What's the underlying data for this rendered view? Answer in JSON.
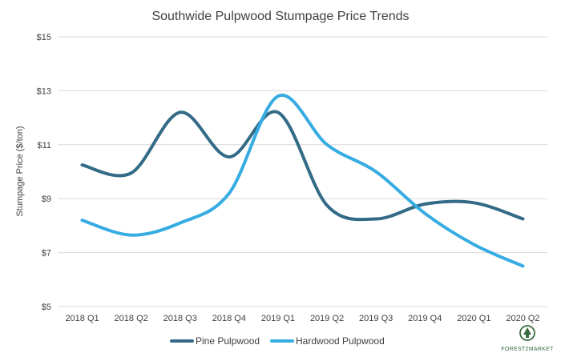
{
  "chart_data": {
    "type": "line",
    "title": "Southwide Pulpwood Stumpage Price Trends",
    "ylabel": "Stumpage Price ($/ton)",
    "xlabel": "",
    "categories": [
      "2018 Q1",
      "2018 Q2",
      "2018 Q3",
      "2018 Q4",
      "2019 Q1",
      "2019 Q2",
      "2019 Q3",
      "2019 Q4",
      "2020 Q1",
      "2020 Q2"
    ],
    "yticks": [
      "$5",
      "$7",
      "$9",
      "$11",
      "$13",
      "$15"
    ],
    "ylim": [
      5,
      15
    ],
    "grid": true,
    "legend_position": "bottom",
    "series": [
      {
        "name": "Pine Pulpwood",
        "color": "#336b87",
        "values": [
          10.25,
          9.95,
          12.2,
          10.55,
          12.2,
          8.75,
          8.25,
          8.8,
          8.85,
          8.25
        ]
      },
      {
        "name": "Hardwood Pulpwood",
        "color": "#36ace2",
        "values": [
          8.2,
          7.65,
          8.1,
          9.2,
          12.8,
          11.0,
          10.0,
          8.45,
          7.3,
          6.5
        ]
      }
    ]
  },
  "logo": {
    "text": "FOREST2MARKET",
    "icon": "tree-icon",
    "color": "#3a6b3f"
  }
}
